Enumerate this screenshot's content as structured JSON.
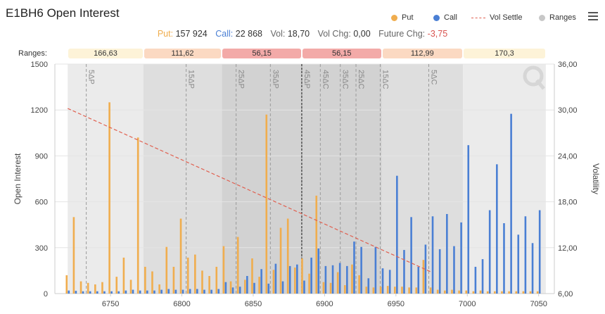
{
  "header": {
    "title": "E1BH6 Open Interest",
    "legend": [
      {
        "label": "Put",
        "color": "#f0ad4e",
        "kind": "dot"
      },
      {
        "label": "Call",
        "color": "#4a7fd4",
        "kind": "dot"
      },
      {
        "label": "Vol Settle",
        "color": "#e06050",
        "kind": "dash"
      },
      {
        "label": "Ranges",
        "color": "#c8c8c8",
        "kind": "dot"
      }
    ],
    "menu_icon": "hamburger-menu-icon"
  },
  "stats": {
    "put_label": "Put:",
    "put_value": "157 924",
    "call_label": "Call:",
    "call_value": "22 868",
    "vol_label": "Vol:",
    "vol_value": "18,70",
    "volchg_label": "Vol Chg:",
    "volchg_value": "0,00",
    "futchg_label": "Future Chg:",
    "futchg_value": "-3,75"
  },
  "ranges": {
    "label": "Ranges:",
    "cells": [
      "166,63",
      "111,62",
      "56,15",
      "56,15",
      "112,99",
      "170,3"
    ],
    "colors": [
      "#fdf3d8",
      "#fbd9c2",
      "#f3aaa8",
      "#f3aaa8",
      "#fbd9c2",
      "#fdf3d8"
    ],
    "bounds": [
      6720,
      6773,
      6828,
      6884,
      6940,
      6997,
      7055
    ]
  },
  "chart_data": {
    "type": "bar",
    "x_range": [
      6720,
      7060
    ],
    "x_ticks": [
      6750,
      6800,
      6850,
      6900,
      6950,
      7000,
      7050
    ],
    "ylabel": "Open Interest",
    "ylim": [
      0,
      1500
    ],
    "y_ticks": [
      0,
      300,
      600,
      900,
      1200,
      1500
    ],
    "y2label": "Volatility",
    "y2lim": [
      6,
      36
    ],
    "y2_ticks": [
      "6,00",
      "12,00",
      "18,00",
      "24,00",
      "30,00",
      "36,00"
    ],
    "current_price": 6884,
    "delta_lines": [
      {
        "label": "5ΔP",
        "x": 6733
      },
      {
        "label": "15ΔP",
        "x": 6803
      },
      {
        "label": "25ΔP",
        "x": 6838
      },
      {
        "label": "35ΔP",
        "x": 6862
      },
      {
        "label": "45ΔP",
        "x": 6884
      },
      {
        "label": "45ΔC",
        "x": 6897
      },
      {
        "label": "35ΔC",
        "x": 6911
      },
      {
        "label": "25ΔC",
        "x": 6922
      },
      {
        "label": "15ΔC",
        "x": 6939
      },
      {
        "label": "5ΔC",
        "x": 6973
      }
    ],
    "puts": [
      [
        6720,
        120
      ],
      [
        6725,
        500
      ],
      [
        6730,
        80
      ],
      [
        6735,
        70
      ],
      [
        6740,
        60
      ],
      [
        6745,
        75
      ],
      [
        6750,
        1250
      ],
      [
        6755,
        110
      ],
      [
        6760,
        235
      ],
      [
        6765,
        90
      ],
      [
        6770,
        1020
      ],
      [
        6775,
        175
      ],
      [
        6780,
        145
      ],
      [
        6785,
        60
      ],
      [
        6790,
        305
      ],
      [
        6795,
        175
      ],
      [
        6800,
        490
      ],
      [
        6805,
        235
      ],
      [
        6810,
        255
      ],
      [
        6815,
        150
      ],
      [
        6820,
        115
      ],
      [
        6825,
        175
      ],
      [
        6830,
        310
      ],
      [
        6835,
        80
      ],
      [
        6840,
        370
      ],
      [
        6845,
        90
      ],
      [
        6850,
        230
      ],
      [
        6855,
        110
      ],
      [
        6860,
        1170
      ],
      [
        6865,
        155
      ],
      [
        6870,
        430
      ],
      [
        6875,
        490
      ],
      [
        6880,
        170
      ],
      [
        6885,
        230
      ],
      [
        6890,
        130
      ],
      [
        6895,
        640
      ],
      [
        6900,
        75
      ],
      [
        6905,
        70
      ],
      [
        6910,
        140
      ],
      [
        6915,
        55
      ],
      [
        6920,
        190
      ],
      [
        6925,
        120
      ],
      [
        6930,
        45
      ],
      [
        6935,
        40
      ],
      [
        6940,
        45
      ],
      [
        6945,
        50
      ],
      [
        6950,
        45
      ],
      [
        6955,
        45
      ],
      [
        6960,
        40
      ],
      [
        6965,
        40
      ],
      [
        6970,
        220
      ],
      [
        6975,
        40
      ],
      [
        6980,
        25
      ],
      [
        6985,
        20
      ],
      [
        6990,
        25
      ],
      [
        6995,
        20
      ],
      [
        7000,
        20
      ],
      [
        7005,
        15
      ],
      [
        7010,
        20
      ],
      [
        7015,
        15
      ],
      [
        7020,
        15
      ],
      [
        7025,
        15
      ],
      [
        7030,
        15
      ],
      [
        7035,
        15
      ],
      [
        7040,
        15
      ],
      [
        7045,
        15
      ],
      [
        7050,
        15
      ]
    ],
    "calls": [
      [
        6720,
        20
      ],
      [
        6725,
        18
      ],
      [
        6730,
        15
      ],
      [
        6735,
        15
      ],
      [
        6740,
        15
      ],
      [
        6745,
        15
      ],
      [
        6750,
        15
      ],
      [
        6755,
        15
      ],
      [
        6760,
        20
      ],
      [
        6765,
        25
      ],
      [
        6770,
        20
      ],
      [
        6775,
        20
      ],
      [
        6780,
        20
      ],
      [
        6785,
        25
      ],
      [
        6790,
        30
      ],
      [
        6795,
        25
      ],
      [
        6800,
        25
      ],
      [
        6805,
        30
      ],
      [
        6810,
        30
      ],
      [
        6815,
        25
      ],
      [
        6820,
        25
      ],
      [
        6825,
        30
      ],
      [
        6830,
        75
      ],
      [
        6835,
        40
      ],
      [
        6840,
        45
      ],
      [
        6845,
        115
      ],
      [
        6850,
        70
      ],
      [
        6855,
        160
      ],
      [
        6860,
        65
      ],
      [
        6865,
        195
      ],
      [
        6870,
        80
      ],
      [
        6875,
        180
      ],
      [
        6880,
        190
      ],
      [
        6885,
        85
      ],
      [
        6890,
        235
      ],
      [
        6895,
        295
      ],
      [
        6900,
        180
      ],
      [
        6905,
        185
      ],
      [
        6910,
        200
      ],
      [
        6915,
        180
      ],
      [
        6920,
        340
      ],
      [
        6925,
        305
      ],
      [
        6930,
        100
      ],
      [
        6935,
        305
      ],
      [
        6940,
        165
      ],
      [
        6945,
        155
      ],
      [
        6950,
        770
      ],
      [
        6955,
        285
      ],
      [
        6960,
        500
      ],
      [
        6965,
        175
      ],
      [
        6970,
        320
      ],
      [
        6975,
        505
      ],
      [
        6980,
        290
      ],
      [
        6985,
        520
      ],
      [
        6990,
        310
      ],
      [
        6995,
        465
      ],
      [
        7000,
        970
      ],
      [
        7005,
        175
      ],
      [
        7010,
        225
      ],
      [
        7015,
        545
      ],
      [
        7020,
        845
      ],
      [
        7025,
        460
      ],
      [
        7030,
        1175
      ],
      [
        7035,
        385
      ],
      [
        7040,
        505
      ],
      [
        7045,
        330
      ],
      [
        7050,
        545
      ]
    ],
    "vol_settle": [
      [
        6720,
        30.2
      ],
      [
        6975,
        8.8
      ]
    ]
  }
}
